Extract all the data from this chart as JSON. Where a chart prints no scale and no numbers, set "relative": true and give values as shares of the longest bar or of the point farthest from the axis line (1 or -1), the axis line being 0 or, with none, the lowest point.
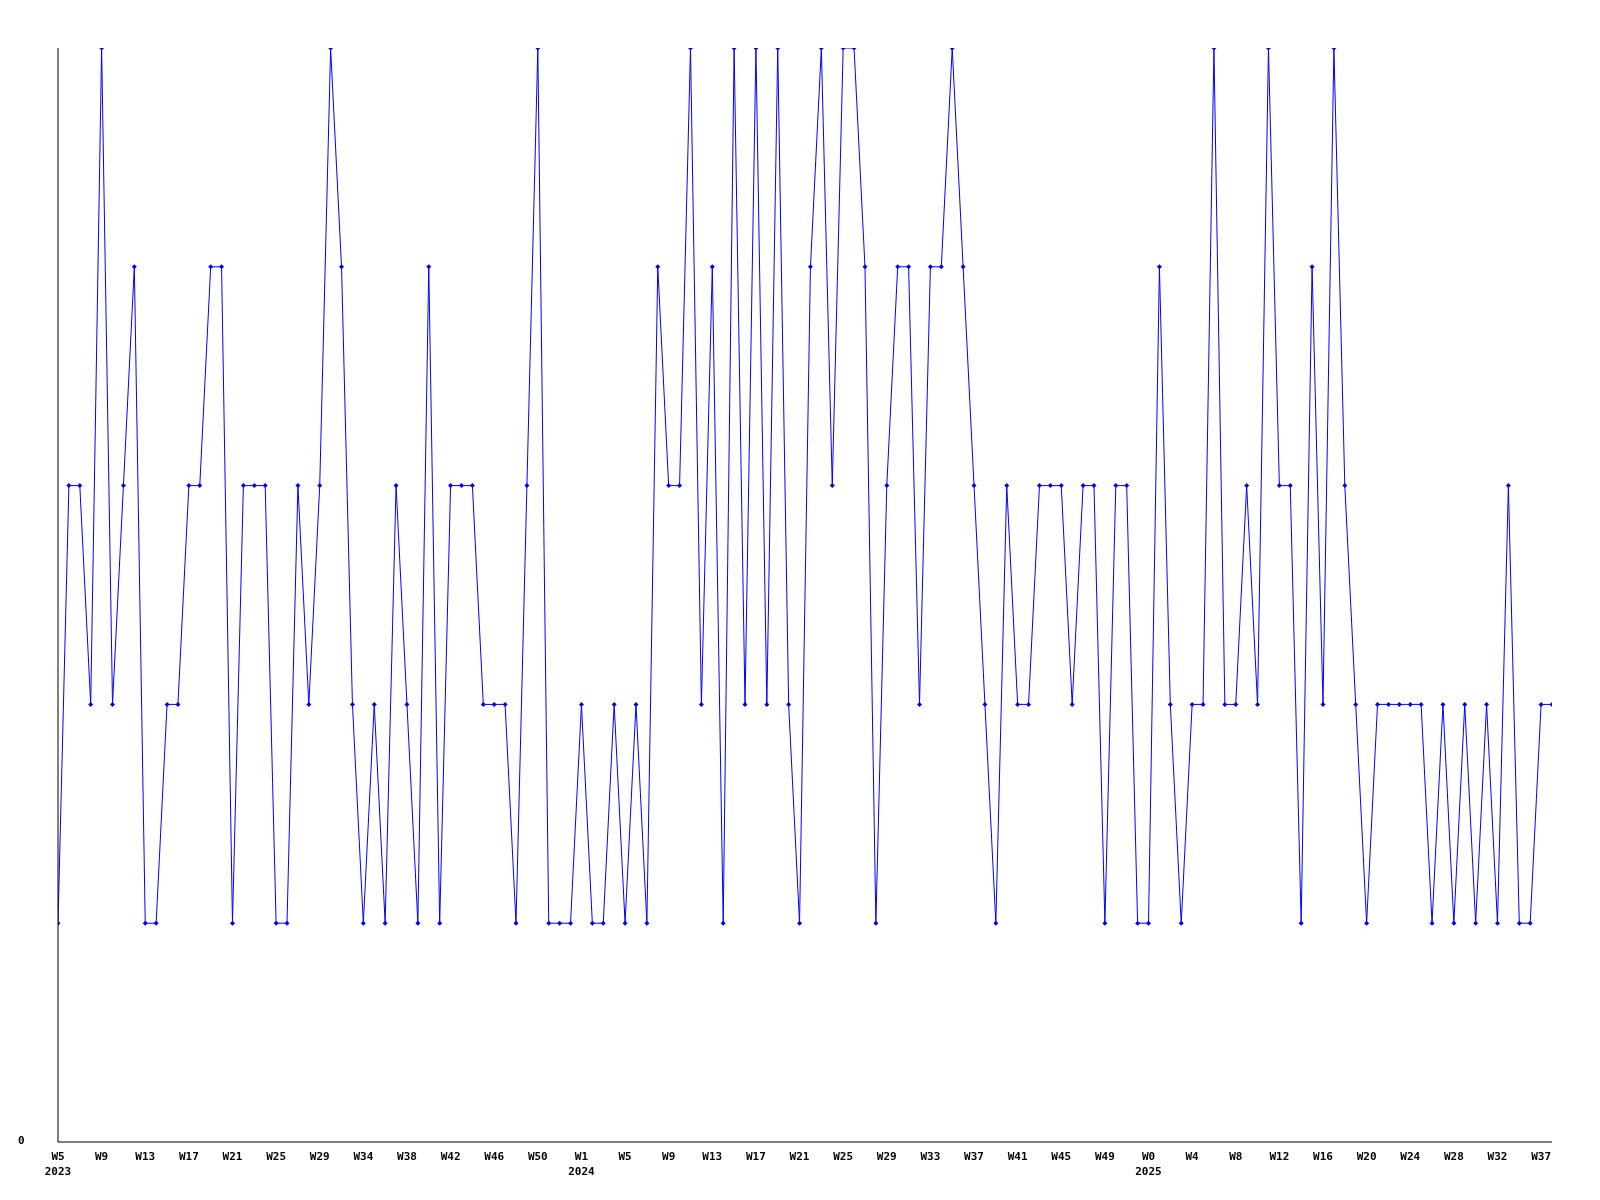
{
  "chart_data": {
    "type": "line",
    "relative": true,
    "color": "#0000ff",
    "marker": "diamond",
    "grid": false,
    "legend": false,
    "annotations": [
      "0"
    ],
    "categories": [
      "W5\n2023",
      null,
      null,
      null,
      "W9",
      null,
      null,
      null,
      "W13",
      null,
      null,
      null,
      "W17",
      null,
      null,
      null,
      "W21",
      null,
      null,
      null,
      "W25",
      null,
      null,
      null,
      "W29",
      null,
      null,
      null,
      "W34",
      null,
      null,
      null,
      "W38",
      null,
      null,
      null,
      "W42",
      null,
      null,
      null,
      "W46",
      null,
      null,
      null,
      "W50",
      null,
      null,
      null,
      "W1\n2024",
      null,
      null,
      null,
      "W5",
      null,
      null,
      null,
      "W9",
      null,
      null,
      null,
      "W13",
      null,
      null,
      null,
      "W17",
      null,
      null,
      null,
      "W21",
      null,
      null,
      null,
      "W25",
      null,
      null,
      null,
      "W29",
      null,
      null,
      null,
      "W33",
      null,
      null,
      null,
      "W37",
      null,
      null,
      null,
      "W41",
      null,
      null,
      null,
      "W45",
      null,
      null,
      null,
      "W49",
      null,
      null,
      null,
      "W0\n2025",
      null,
      null,
      null,
      "W4",
      null,
      null,
      null,
      "W8",
      null,
      null,
      null,
      "W12",
      null,
      null,
      null,
      "W16",
      null,
      null,
      null,
      "W20",
      null,
      null,
      null,
      "W24",
      null,
      null,
      null,
      "W28",
      null,
      null,
      null,
      "W32",
      null,
      null,
      null,
      "W37",
      null
    ],
    "values": [
      0.2,
      0.6,
      0.6,
      0.4,
      1,
      0.4,
      0.6,
      0.8,
      0.2,
      0.2,
      0.4,
      0.4,
      0.6,
      0.6,
      0.8,
      0.8,
      0.2,
      0.6,
      0.6,
      0.6,
      0.2,
      0.2,
      0.6,
      0.4,
      0.6,
      1,
      0.8,
      0.4,
      0.2,
      0.4,
      0.2,
      0.6,
      0.4,
      0.2,
      0.8,
      0.2,
      0.6,
      0.6,
      0.6,
      0.4,
      0.4,
      0.4,
      0.2,
      0.6,
      1,
      0.2,
      0.2,
      0.2,
      0.4,
      0.2,
      0.2,
      0.4,
      0.2,
      0.4,
      0.2,
      0.8,
      0.6,
      0.6,
      1,
      0.4,
      0.8,
      0.2,
      1,
      0.4,
      1,
      0.4,
      1,
      0.4,
      0.2,
      0.8,
      1,
      0.6,
      1,
      1,
      0.8,
      0.2,
      0.6,
      0.8,
      0.8,
      0.4,
      0.8,
      0.8,
      1,
      0.8,
      0.6,
      0.4,
      0.2,
      0.6,
      0.4,
      0.4,
      0.6,
      0.6,
      0.6,
      0.4,
      0.6,
      0.6,
      0.2,
      0.6,
      0.6,
      0.2,
      0.2,
      0.8,
      0.4,
      0.2,
      0.4,
      0.4,
      1,
      0.4,
      0.4,
      0.6,
      0.4,
      1,
      0.6,
      0.6,
      0.2,
      0.8,
      0.4,
      1,
      0.6,
      0.4,
      0.2,
      0.4,
      0.4,
      0.4,
      0.4,
      0.4,
      0.2,
      0.4,
      0.2,
      0.4,
      0.2,
      0.4,
      0.2,
      0.6,
      0.2,
      0.2,
      0.4,
      0.4
    ]
  }
}
